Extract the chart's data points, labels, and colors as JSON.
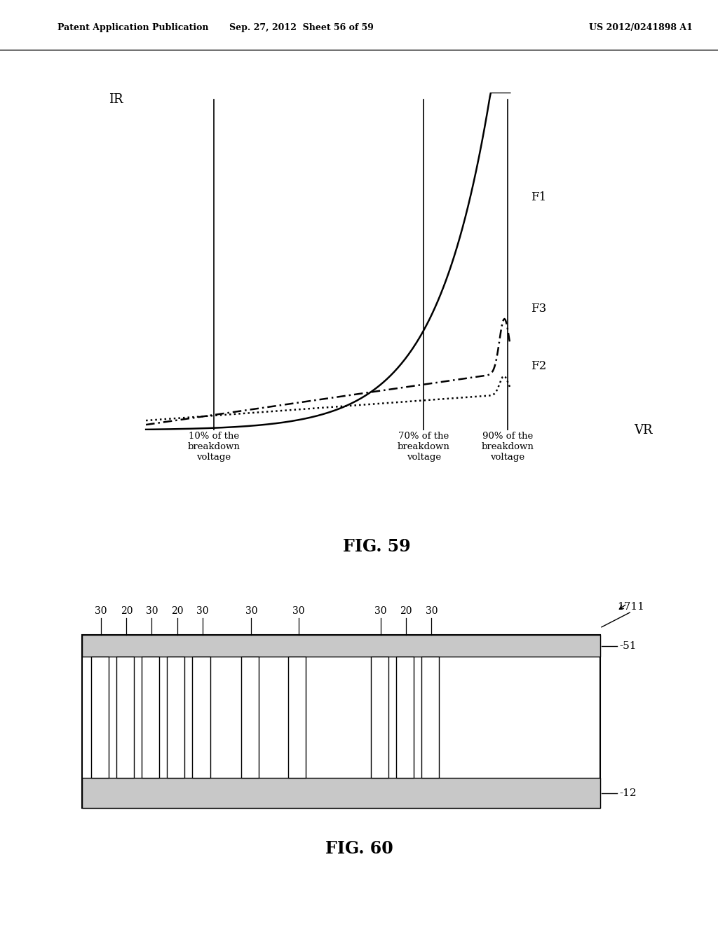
{
  "bg_color": "#ffffff",
  "header_left": "Patent Application Publication",
  "header_mid": "Sep. 27, 2012  Sheet 56 of 59",
  "header_right": "US 2012/0241898 A1",
  "fig59_title": "FIG. 59",
  "fig60_title": "FIG. 60",
  "plot_ylabel": "IR",
  "plot_xlabel": "VR",
  "vline_labels": [
    "10% of the\nbreakdown\nvoltage",
    "70% of the\nbreakdown\nvoltage",
    "90% of the\nbreakdown\nvoltage"
  ],
  "curve_labels": [
    "F1",
    "F2",
    "F3"
  ],
  "label_12": "12",
  "label_51": "51",
  "label_1711": "1711",
  "col_labels_top": [
    "30",
    "20",
    "30",
    "20",
    "30",
    "",
    "30",
    "",
    "30",
    "",
    "30",
    "20",
    "30"
  ],
  "vx1": 1.5,
  "vx2": 6.0,
  "vx3": 7.8
}
